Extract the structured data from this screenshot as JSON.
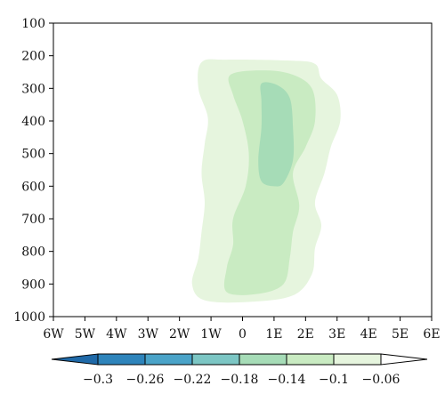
{
  "chart_data": {
    "type": "contourf",
    "x_ticks": [
      "6W",
      "5W",
      "4W",
      "3W",
      "2W",
      "1W",
      "0",
      "1E",
      "2E",
      "3E",
      "4E",
      "5E",
      "6E"
    ],
    "y_ticks": [
      "100",
      "200",
      "300",
      "400",
      "500",
      "600",
      "700",
      "800",
      "900",
      "1000"
    ],
    "x_range": [
      -6,
      6
    ],
    "y_range": [
      1000,
      100
    ],
    "y_reversed": true,
    "grid": false,
    "contour_levels": [
      "-0.3",
      "-0.26",
      "-0.22",
      "-0.18",
      "-0.14",
      "-0.1",
      "-0.06"
    ],
    "colorbar": {
      "orientation": "horizontal",
      "extend": "both",
      "colors": [
        "#1f69a8",
        "#2e84bb",
        "#4aa3c8",
        "#7cc6c4",
        "#a6dcb7",
        "#c9ebc2",
        "#e6f5de",
        "#ffffff"
      ]
    },
    "regions": [
      {
        "level_range": [
          "-0.1",
          "-0.06"
        ],
        "color": "#e6f5de",
        "outline": [
          [
            -1.3,
            220
          ],
          [
            -0.5,
            212
          ],
          [
            1.5,
            215
          ],
          [
            2.3,
            225
          ],
          [
            2.5,
            270
          ],
          [
            3.0,
            320
          ],
          [
            3.1,
            400
          ],
          [
            2.8,
            480
          ],
          [
            2.6,
            560
          ],
          [
            2.3,
            650
          ],
          [
            2.5,
            720
          ],
          [
            2.3,
            790
          ],
          [
            2.2,
            870
          ],
          [
            1.6,
            935
          ],
          [
            0.2,
            955
          ],
          [
            -1.2,
            950
          ],
          [
            -1.6,
            900
          ],
          [
            -1.4,
            820
          ],
          [
            -1.3,
            740
          ],
          [
            -1.2,
            650
          ],
          [
            -1.3,
            560
          ],
          [
            -1.2,
            470
          ],
          [
            -1.1,
            390
          ],
          [
            -1.4,
            300
          ]
        ]
      },
      {
        "level_range": [
          "-0.14",
          "-0.1"
        ],
        "color": "#c9ebc2",
        "outline": [
          [
            -0.4,
            260
          ],
          [
            0.5,
            245
          ],
          [
            1.5,
            255
          ],
          [
            2.2,
            300
          ],
          [
            2.3,
            400
          ],
          [
            2.0,
            480
          ],
          [
            1.6,
            560
          ],
          [
            1.8,
            660
          ],
          [
            1.6,
            740
          ],
          [
            1.5,
            820
          ],
          [
            1.3,
            900
          ],
          [
            0.5,
            930
          ],
          [
            -0.5,
            925
          ],
          [
            -0.5,
            850
          ],
          [
            -0.3,
            780
          ],
          [
            -0.3,
            700
          ],
          [
            0.1,
            600
          ],
          [
            0.2,
            500
          ],
          [
            0.0,
            400
          ],
          [
            -0.3,
            320
          ]
        ]
      },
      {
        "level_range": [
          "-0.18",
          "-0.14"
        ],
        "color": "#a6dcb7",
        "outline": [
          [
            0.6,
            285
          ],
          [
            1.1,
            290
          ],
          [
            1.5,
            330
          ],
          [
            1.6,
            420
          ],
          [
            1.6,
            520
          ],
          [
            1.3,
            590
          ],
          [
            1.0,
            600
          ],
          [
            0.6,
            585
          ],
          [
            0.5,
            520
          ],
          [
            0.6,
            420
          ],
          [
            0.6,
            340
          ]
        ]
      }
    ]
  }
}
